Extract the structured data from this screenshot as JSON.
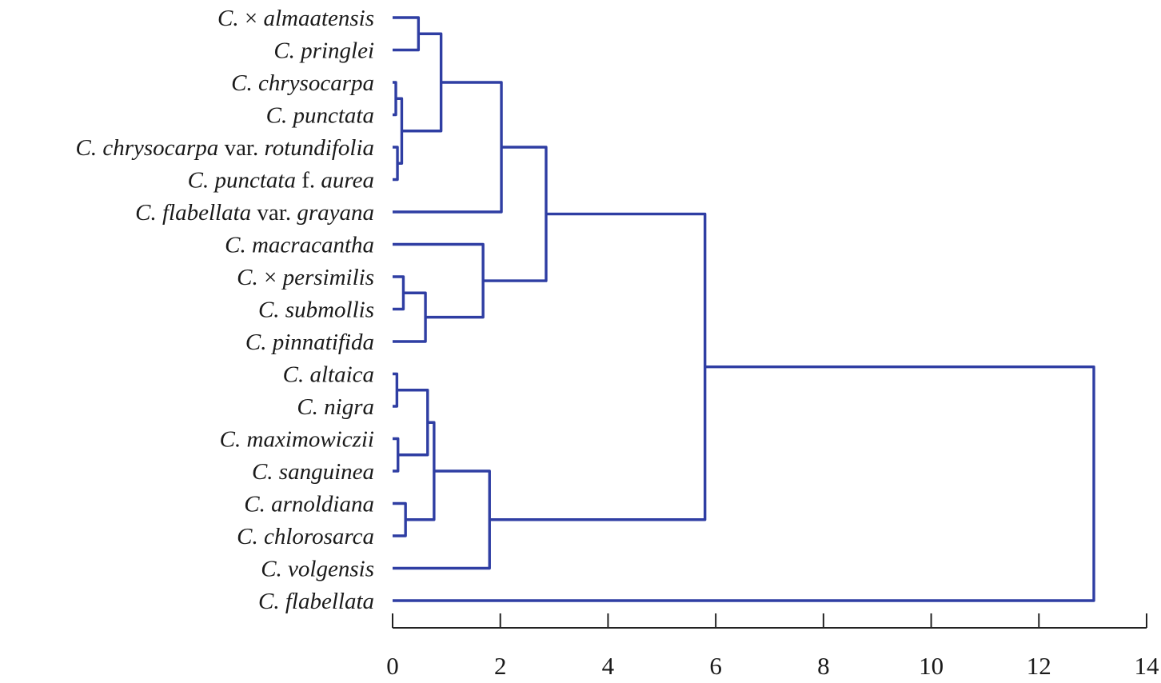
{
  "chart_data": {
    "type": "dendrogram",
    "title": "",
    "xlabel": "",
    "ylabel": "",
    "xlim": [
      0,
      14
    ],
    "x_ticks": [
      0,
      2,
      4,
      6,
      8,
      10,
      12,
      14
    ],
    "line_color": "#2f3ea3",
    "leaves": [
      {
        "id": "almaatensis",
        "label": [
          {
            "t": "C. ",
            "i": true
          },
          {
            "t": "× ",
            "i": false
          },
          {
            "t": "almaatensis",
            "i": true
          }
        ]
      },
      {
        "id": "pringlei",
        "label": [
          {
            "t": "C. pringlei",
            "i": true
          }
        ]
      },
      {
        "id": "chrysocarpa",
        "label": [
          {
            "t": "C. chrysocarpa",
            "i": true
          }
        ]
      },
      {
        "id": "punctata",
        "label": [
          {
            "t": "C. punctata",
            "i": true
          }
        ]
      },
      {
        "id": "chrysocarpa_rotundifolia",
        "label": [
          {
            "t": "C. chrysocarpa",
            "i": true
          },
          {
            "t": " var. ",
            "i": false
          },
          {
            "t": "rotundifolia",
            "i": true
          }
        ]
      },
      {
        "id": "punctata_aurea",
        "label": [
          {
            "t": "C. punctata",
            "i": true
          },
          {
            "t": " f. ",
            "i": false
          },
          {
            "t": "aurea",
            "i": true
          }
        ]
      },
      {
        "id": "flabellata_grayana",
        "label": [
          {
            "t": "C. flabellata",
            "i": true
          },
          {
            "t": " var. ",
            "i": false
          },
          {
            "t": "grayana",
            "i": true
          }
        ]
      },
      {
        "id": "macracantha",
        "label": [
          {
            "t": "C. macracantha",
            "i": true
          }
        ]
      },
      {
        "id": "persimilis",
        "label": [
          {
            "t": "C. ",
            "i": true
          },
          {
            "t": "× ",
            "i": false
          },
          {
            "t": "persimilis",
            "i": true
          }
        ]
      },
      {
        "id": "submollis",
        "label": [
          {
            "t": "C. submollis",
            "i": true
          }
        ]
      },
      {
        "id": "pinnatifida",
        "label": [
          {
            "t": "C. pinnatifida",
            "i": true
          }
        ]
      },
      {
        "id": "altaica",
        "label": [
          {
            "t": "C. altaica",
            "i": true
          }
        ]
      },
      {
        "id": "nigra",
        "label": [
          {
            "t": "C. nigra",
            "i": true
          }
        ]
      },
      {
        "id": "maximowiczii",
        "label": [
          {
            "t": "C. maximowiczii",
            "i": true
          }
        ]
      },
      {
        "id": "sanguinea",
        "label": [
          {
            "t": "C. sanguinea",
            "i": true
          }
        ]
      },
      {
        "id": "arnoldiana",
        "label": [
          {
            "t": "C. arnoldiana",
            "i": true
          }
        ]
      },
      {
        "id": "chlorosarca",
        "label": [
          {
            "t": "C. chlorosarca",
            "i": true
          }
        ]
      },
      {
        "id": "volgensis",
        "label": [
          {
            "t": "C. volgensis",
            "i": true
          }
        ]
      },
      {
        "id": "flabellata",
        "label": [
          {
            "t": "C. flabellata",
            "i": true
          }
        ]
      }
    ],
    "merges": [
      {
        "id": "m1",
        "children": [
          "almaatensis",
          "pringlei"
        ],
        "height": 0.48
      },
      {
        "id": "m2",
        "children": [
          "chrysocarpa",
          "punctata"
        ],
        "height": 0.06
      },
      {
        "id": "m3",
        "children": [
          "chrysocarpa_rotundifolia",
          "punctata_aurea"
        ],
        "height": 0.09
      },
      {
        "id": "m4",
        "children": [
          "m2",
          "m3"
        ],
        "height": 0.17
      },
      {
        "id": "m5",
        "children": [
          "m1",
          "m4"
        ],
        "height": 0.9
      },
      {
        "id": "m6",
        "children": [
          "m5",
          "flabellata_grayana"
        ],
        "height": 2.02
      },
      {
        "id": "m7",
        "children": [
          "persimilis",
          "submollis"
        ],
        "height": 0.2
      },
      {
        "id": "m8",
        "children": [
          "m7",
          "pinnatifida"
        ],
        "height": 0.61
      },
      {
        "id": "m9",
        "children": [
          "macracantha",
          "m8"
        ],
        "height": 1.68
      },
      {
        "id": "m10",
        "children": [
          "m6",
          "m9"
        ],
        "height": 2.85
      },
      {
        "id": "m11",
        "children": [
          "altaica",
          "nigra"
        ],
        "height": 0.08
      },
      {
        "id": "m12",
        "children": [
          "maximowiczii",
          "sanguinea"
        ],
        "height": 0.1
      },
      {
        "id": "m13",
        "children": [
          "m11",
          "m12"
        ],
        "height": 0.65
      },
      {
        "id": "m14",
        "children": [
          "arnoldiana",
          "chlorosarca"
        ],
        "height": 0.24
      },
      {
        "id": "m15",
        "children": [
          "m13",
          "m14"
        ],
        "height": 0.77
      },
      {
        "id": "m16",
        "children": [
          "m15",
          "volgensis"
        ],
        "height": 1.8
      },
      {
        "id": "m17",
        "children": [
          "m10",
          "m16"
        ],
        "height": 5.8
      },
      {
        "id": "m18",
        "children": [
          "m17",
          "flabellata"
        ],
        "height": 13.02
      }
    ]
  }
}
